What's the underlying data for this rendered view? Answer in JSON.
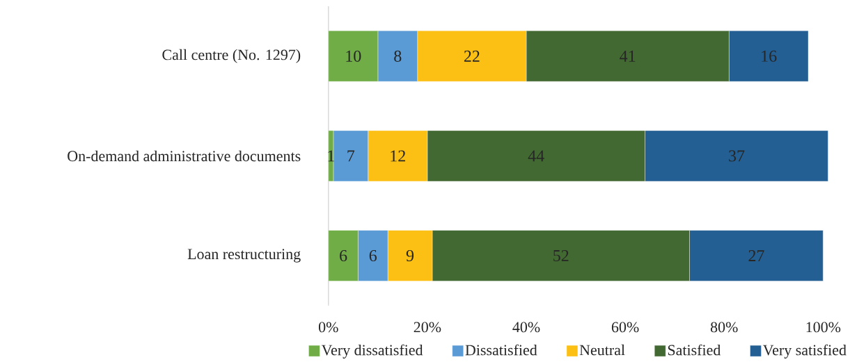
{
  "chart_data": {
    "type": "bar",
    "orientation": "horizontal",
    "stacked": true,
    "data_labels": true,
    "legend": "bottom",
    "categories": [
      "Call centre (No. 1297)",
      "On-demand administrative documents",
      "Loan restructuring"
    ],
    "xlim": [
      0,
      101
    ],
    "xticks": [
      {
        "value": 0,
        "label": "0%"
      },
      {
        "value": 20,
        "label": "20%"
      },
      {
        "value": 40,
        "label": "40%"
      },
      {
        "value": 60,
        "label": "60%"
      },
      {
        "value": 80,
        "label": "80%"
      },
      {
        "value": 100,
        "label": "100%"
      }
    ],
    "series": [
      {
        "name": "Very dissatisfied",
        "color": "#70ad47",
        "values": [
          10,
          1,
          6
        ]
      },
      {
        "name": "Dissatisfied",
        "color": "#5b9bd5",
        "values": [
          8,
          7,
          6
        ]
      },
      {
        "name": "Neutral",
        "color": "#fcbf14",
        "values": [
          22,
          12,
          9
        ]
      },
      {
        "name": "Satisfied",
        "color": "#436932",
        "values": [
          41,
          44,
          52
        ]
      },
      {
        "name": "Very satisfied",
        "color": "#245f93",
        "values": [
          16,
          37,
          27
        ]
      }
    ]
  }
}
